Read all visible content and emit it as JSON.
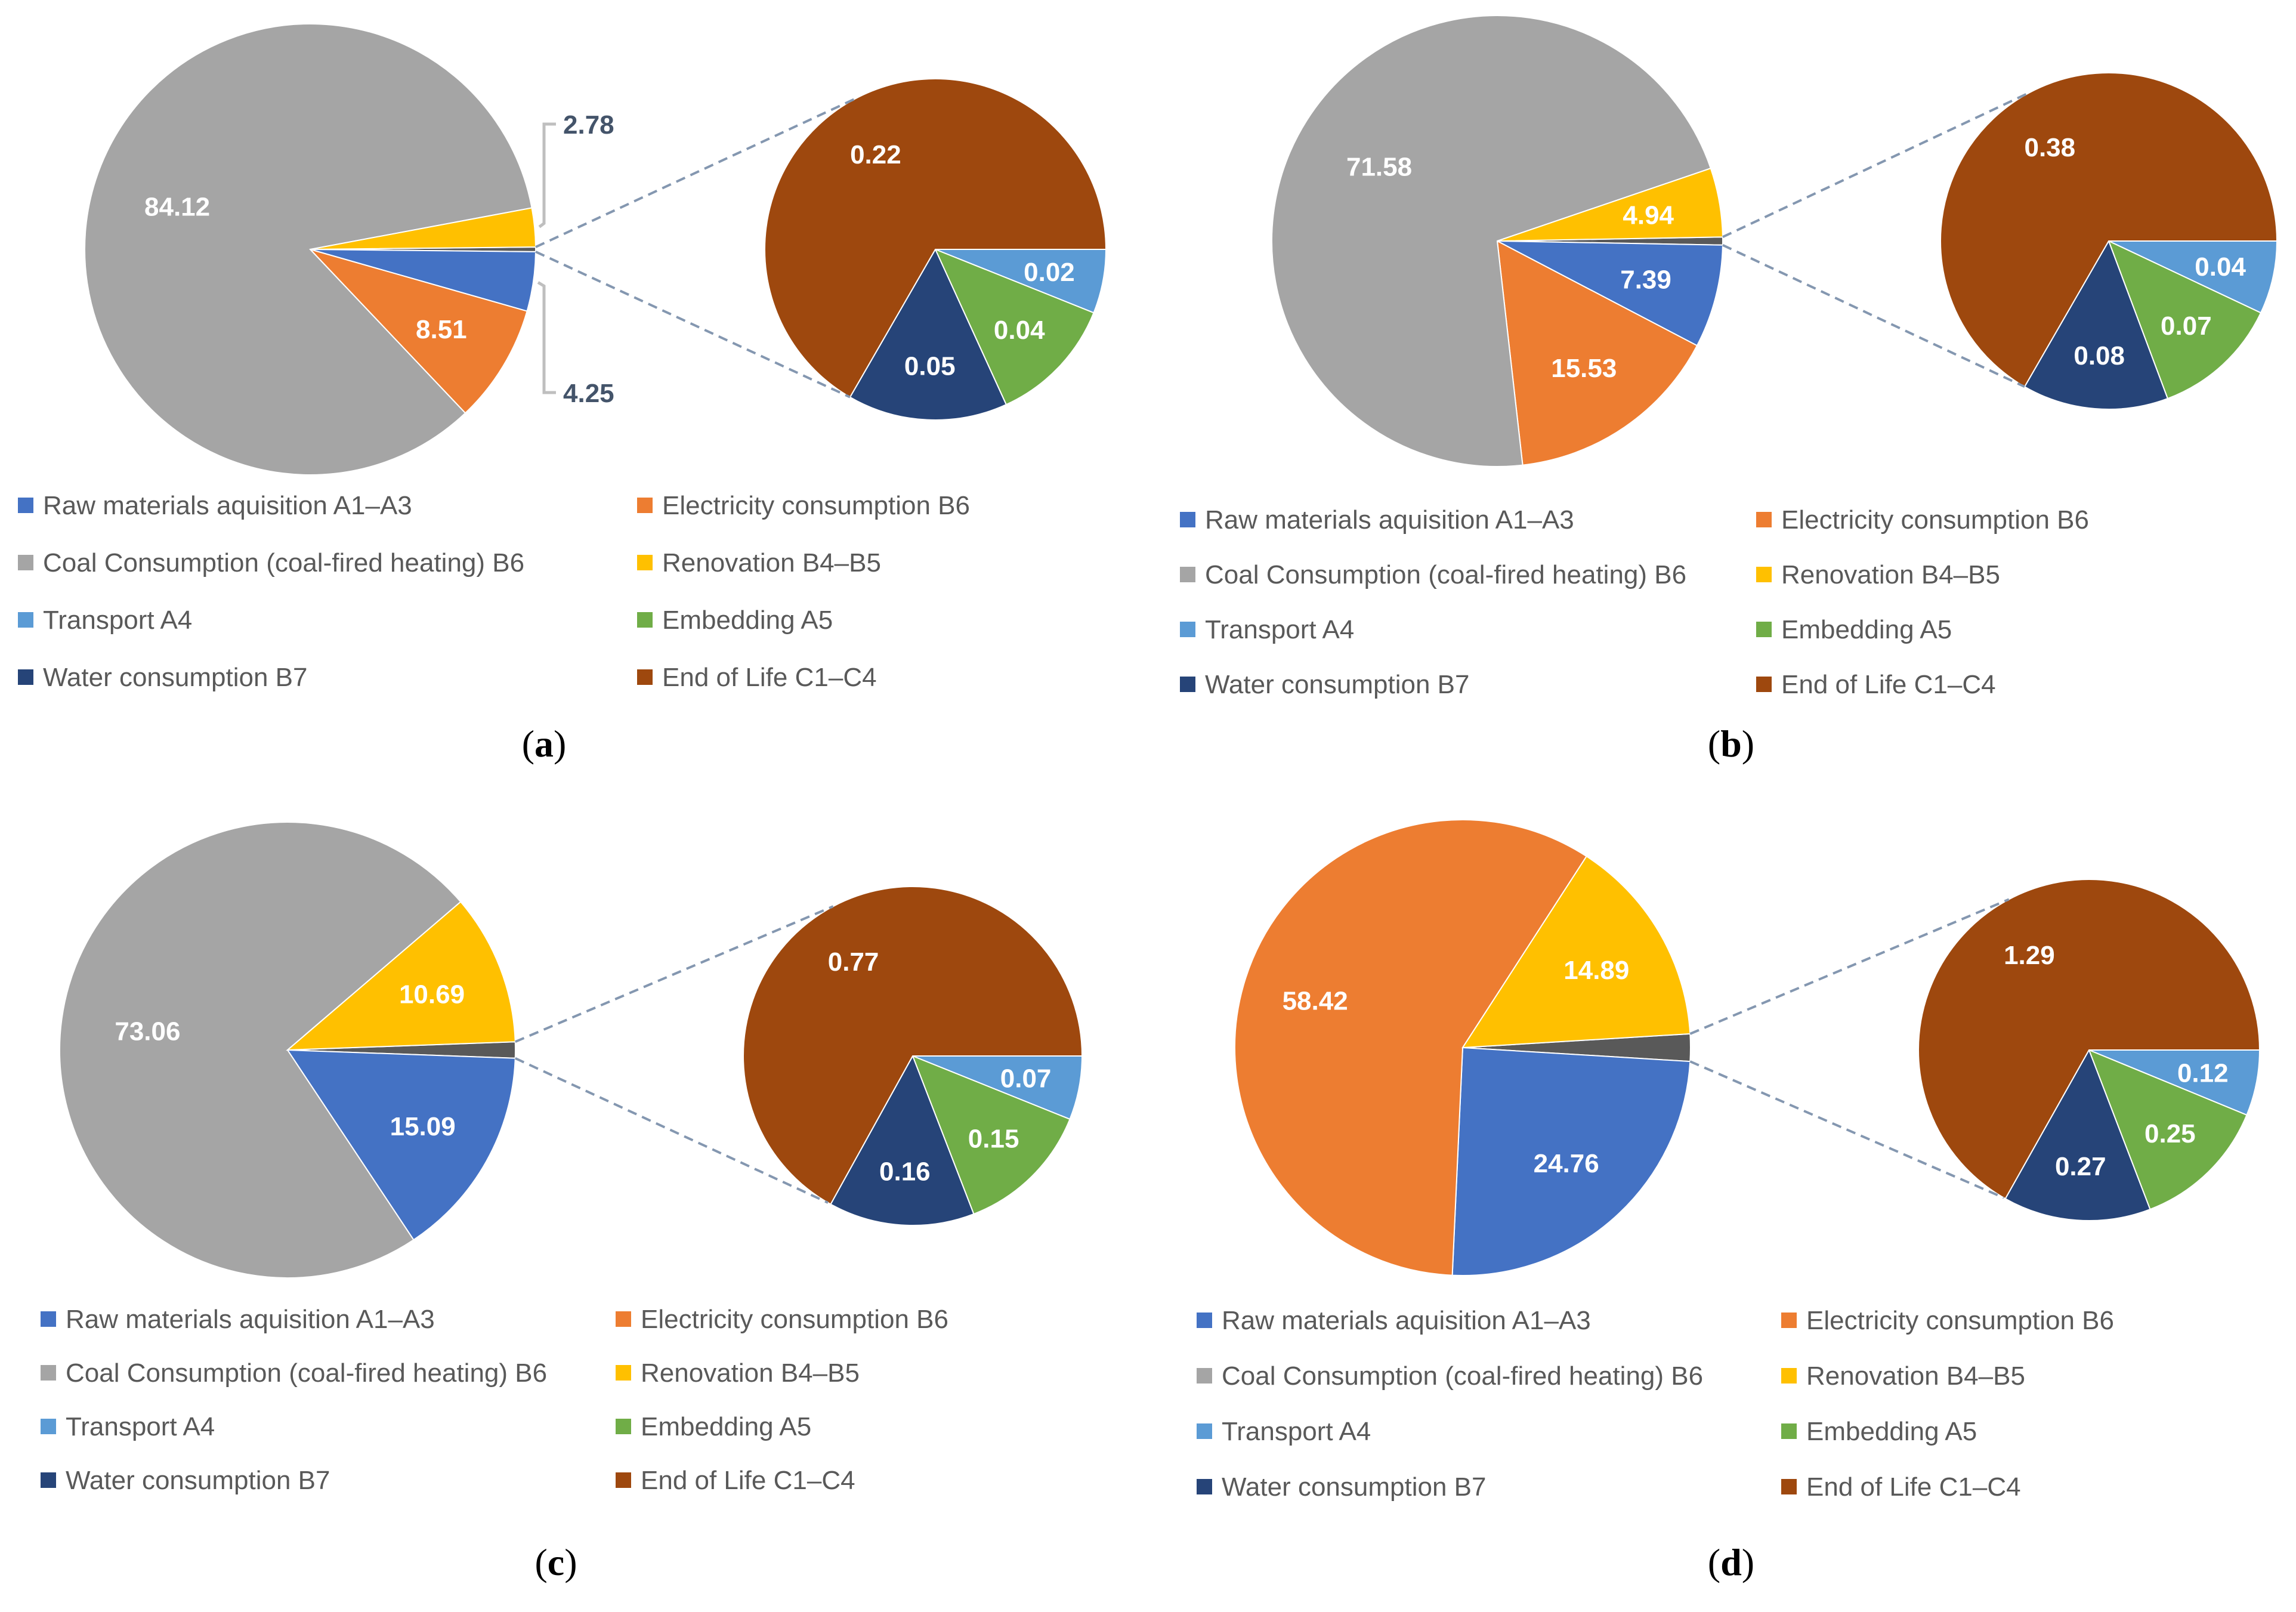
{
  "colors": {
    "raw_materials": "#4472c4",
    "electricity": "#ed7d31",
    "coal": "#a5a5a5",
    "renovation": "#ffc000",
    "transport": "#5b9bd5",
    "embedding": "#70ad47",
    "water": "#264478",
    "end_of_life": "#9e480e",
    "connector": "#8497b0",
    "callout": "#44546a"
  },
  "legend": [
    {
      "key": "raw_materials",
      "label": "Raw materials aquisition A1–A3"
    },
    {
      "key": "electricity",
      "label": "Electricity consumption B6"
    },
    {
      "key": "coal",
      "label": "Coal Consumption (coal-fired heating) B6"
    },
    {
      "key": "renovation",
      "label": "Renovation B4–B5"
    },
    {
      "key": "transport",
      "label": "Transport A4"
    },
    {
      "key": "embedding",
      "label": "Embedding A5"
    },
    {
      "key": "water",
      "label": "Water consumption B7"
    },
    {
      "key": "end_of_life",
      "label": "End of Life C1–C4"
    }
  ],
  "chart_data": [
    {
      "type": "pie",
      "caption": "a",
      "main": [
        {
          "key": "coal",
          "value": 84.12,
          "label": "84.12"
        },
        {
          "key": "electricity",
          "value": 8.51,
          "label": "8.51"
        },
        {
          "key": "raw_materials",
          "value": 4.25,
          "label": "4.25",
          "callout": true
        },
        {
          "key": "renovation",
          "value": 2.78,
          "label": "2.78",
          "callout": true
        },
        {
          "key": "other",
          "value": 0.33
        }
      ],
      "detail": [
        {
          "key": "end_of_life",
          "value": 0.22,
          "label": "0.22"
        },
        {
          "key": "water",
          "value": 0.05,
          "label": "0.05"
        },
        {
          "key": "embedding",
          "value": 0.04,
          "label": "0.04"
        },
        {
          "key": "transport",
          "value": 0.02,
          "label": "0.02"
        }
      ]
    },
    {
      "type": "pie",
      "caption": "b",
      "main": [
        {
          "key": "coal",
          "value": 71.58,
          "label": "71.58"
        },
        {
          "key": "electricity",
          "value": 15.53,
          "label": "15.53"
        },
        {
          "key": "raw_materials",
          "value": 7.39,
          "label": "7.39"
        },
        {
          "key": "renovation",
          "value": 4.94,
          "label": "4.94"
        },
        {
          "key": "other",
          "value": 0.57
        }
      ],
      "detail": [
        {
          "key": "end_of_life",
          "value": 0.38,
          "label": "0.38"
        },
        {
          "key": "water",
          "value": 0.08,
          "label": "0.08"
        },
        {
          "key": "embedding",
          "value": 0.07,
          "label": "0.07"
        },
        {
          "key": "transport",
          "value": 0.04,
          "label": "0.04"
        }
      ]
    },
    {
      "type": "pie",
      "caption": "c",
      "main": [
        {
          "key": "coal",
          "value": 73.06,
          "label": "73.06"
        },
        {
          "key": "raw_materials",
          "value": 15.09,
          "label": "15.09"
        },
        {
          "key": "renovation",
          "value": 10.69,
          "label": "10.69"
        },
        {
          "key": "other",
          "value": 1.15
        }
      ],
      "detail": [
        {
          "key": "end_of_life",
          "value": 0.77,
          "label": "0.77"
        },
        {
          "key": "water",
          "value": 0.16,
          "label": "0.16"
        },
        {
          "key": "embedding",
          "value": 0.15,
          "label": "0.15"
        },
        {
          "key": "transport",
          "value": 0.07,
          "label": "0.07"
        }
      ]
    },
    {
      "type": "pie",
      "caption": "d",
      "main": [
        {
          "key": "electricity",
          "value": 58.42,
          "label": "58.42"
        },
        {
          "key": "raw_materials",
          "value": 24.76,
          "label": "24.76"
        },
        {
          "key": "renovation",
          "value": 14.89,
          "label": "14.89"
        },
        {
          "key": "other",
          "value": 1.93
        }
      ],
      "detail": [
        {
          "key": "end_of_life",
          "value": 1.29,
          "label": "1.29"
        },
        {
          "key": "water",
          "value": 0.27,
          "label": "0.27"
        },
        {
          "key": "embedding",
          "value": 0.25,
          "label": "0.25"
        },
        {
          "key": "transport",
          "value": 0.12,
          "label": "0.12"
        }
      ]
    }
  ]
}
